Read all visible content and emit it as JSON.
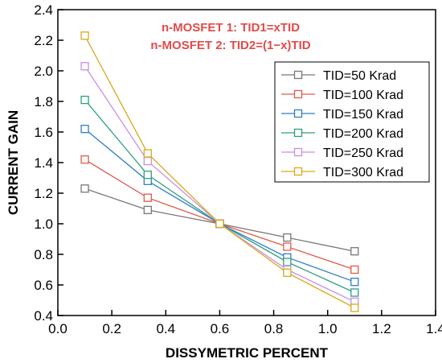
{
  "chart_data": {
    "type": "line",
    "xlabel": "DISSYMETRIC PERCENT",
    "ylabel": "CURRENT GAIN",
    "xlim": [
      0.0,
      1.4
    ],
    "ylim": [
      0.4,
      2.4
    ],
    "xticks": [
      "0.0",
      "0.2",
      "0.4",
      "0.6",
      "0.8",
      "1.0",
      "1.2",
      "1.4"
    ],
    "yticks": [
      "0.4",
      "0.6",
      "0.8",
      "1.0",
      "1.2",
      "1.4",
      "1.6",
      "1.8",
      "2.0",
      "2.2",
      "2.4"
    ],
    "grid": false,
    "legend_position": "right",
    "annotations": [
      {
        "text": "n-MOSFET 1: TID1=xTID",
        "color": "#e34a4a"
      },
      {
        "text": "n-MOSFET 2: TID2=(1−x)TID",
        "color": "#e34a4a"
      }
    ],
    "x": [
      0.1,
      0.333,
      0.6,
      0.85,
      1.1
    ],
    "series": [
      {
        "name": "TID=50 Krad",
        "color": "#777777",
        "values": [
          1.23,
          1.09,
          1.0,
          0.91,
          0.82
        ]
      },
      {
        "name": "TID=100 Krad",
        "color": "#e05a4a",
        "values": [
          1.42,
          1.17,
          1.0,
          0.85,
          0.7
        ]
      },
      {
        "name": "TID=150 Krad",
        "color": "#2f7ec9",
        "values": [
          1.62,
          1.28,
          1.0,
          0.78,
          0.62
        ]
      },
      {
        "name": "TID=200 Krad",
        "color": "#2ea07e",
        "values": [
          1.81,
          1.32,
          1.0,
          0.75,
          0.55
        ]
      },
      {
        "name": "TID=250 Krad",
        "color": "#c78fe6",
        "values": [
          2.03,
          1.41,
          1.0,
          0.7,
          0.49
        ]
      },
      {
        "name": "TID=300 Krad",
        "color": "#d9a81c",
        "values": [
          2.23,
          1.46,
          1.0,
          0.68,
          0.45
        ]
      }
    ]
  }
}
